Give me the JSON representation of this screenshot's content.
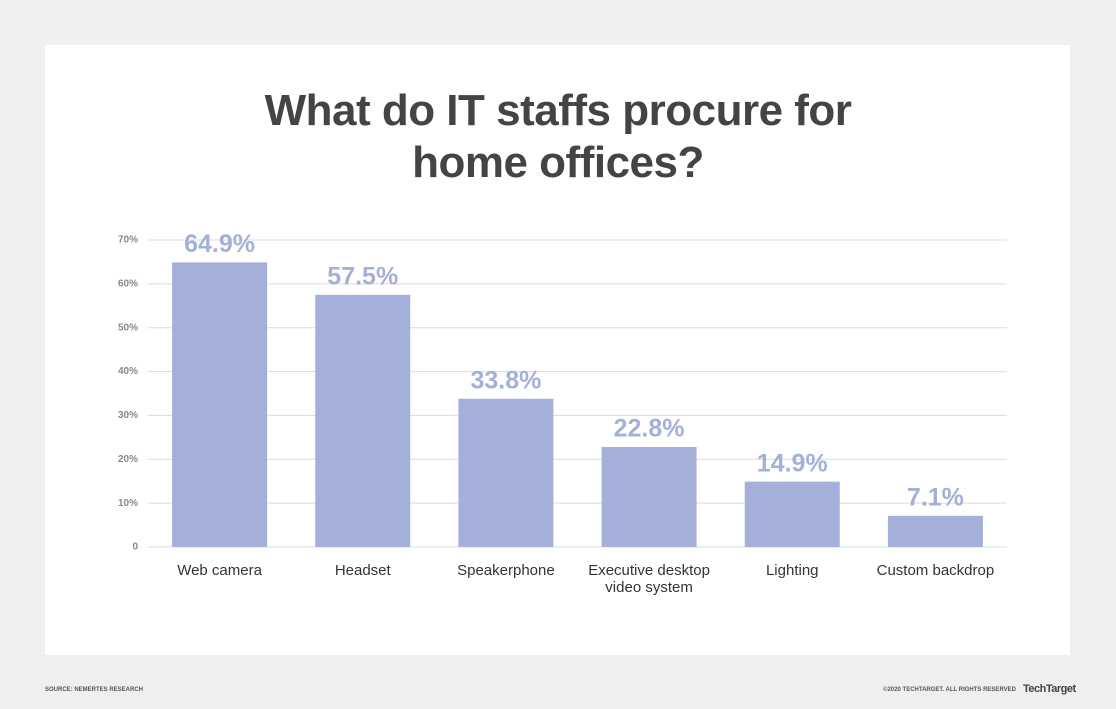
{
  "chart_data": {
    "type": "bar",
    "title": "What do IT staffs procure for home offices?",
    "categories": [
      "Web camera",
      "Headset",
      "Speakerphone",
      "Executive desktop video system",
      "Lighting",
      "Custom backdrop"
    ],
    "values": [
      64.9,
      57.5,
      33.8,
      22.8,
      14.9,
      7.1
    ],
    "value_labels": [
      "64.9%",
      "57.5%",
      "33.8%",
      "22.8%",
      "14.9%",
      "7.1%"
    ],
    "color": "#a5b0da",
    "ylim": [
      0,
      70
    ],
    "yticks": [
      0,
      {
        "value": 10,
        "label": "10%"
      },
      {
        "value": 20,
        "label": "20%"
      },
      {
        "value": 30,
        "label": "30%"
      },
      {
        "value": 40,
        "label": "40%"
      },
      {
        "value": 50,
        "label": "50%"
      },
      {
        "value": 60,
        "label": "60%"
      },
      {
        "value": 70,
        "label": "70%"
      }
    ],
    "grid": true,
    "source": "SOURCE: NEMERTES RESEARCH",
    "copyright": "©2020 TECHTARGET. ALL RIGHTS RESERVED",
    "logo": "TechTarget"
  }
}
